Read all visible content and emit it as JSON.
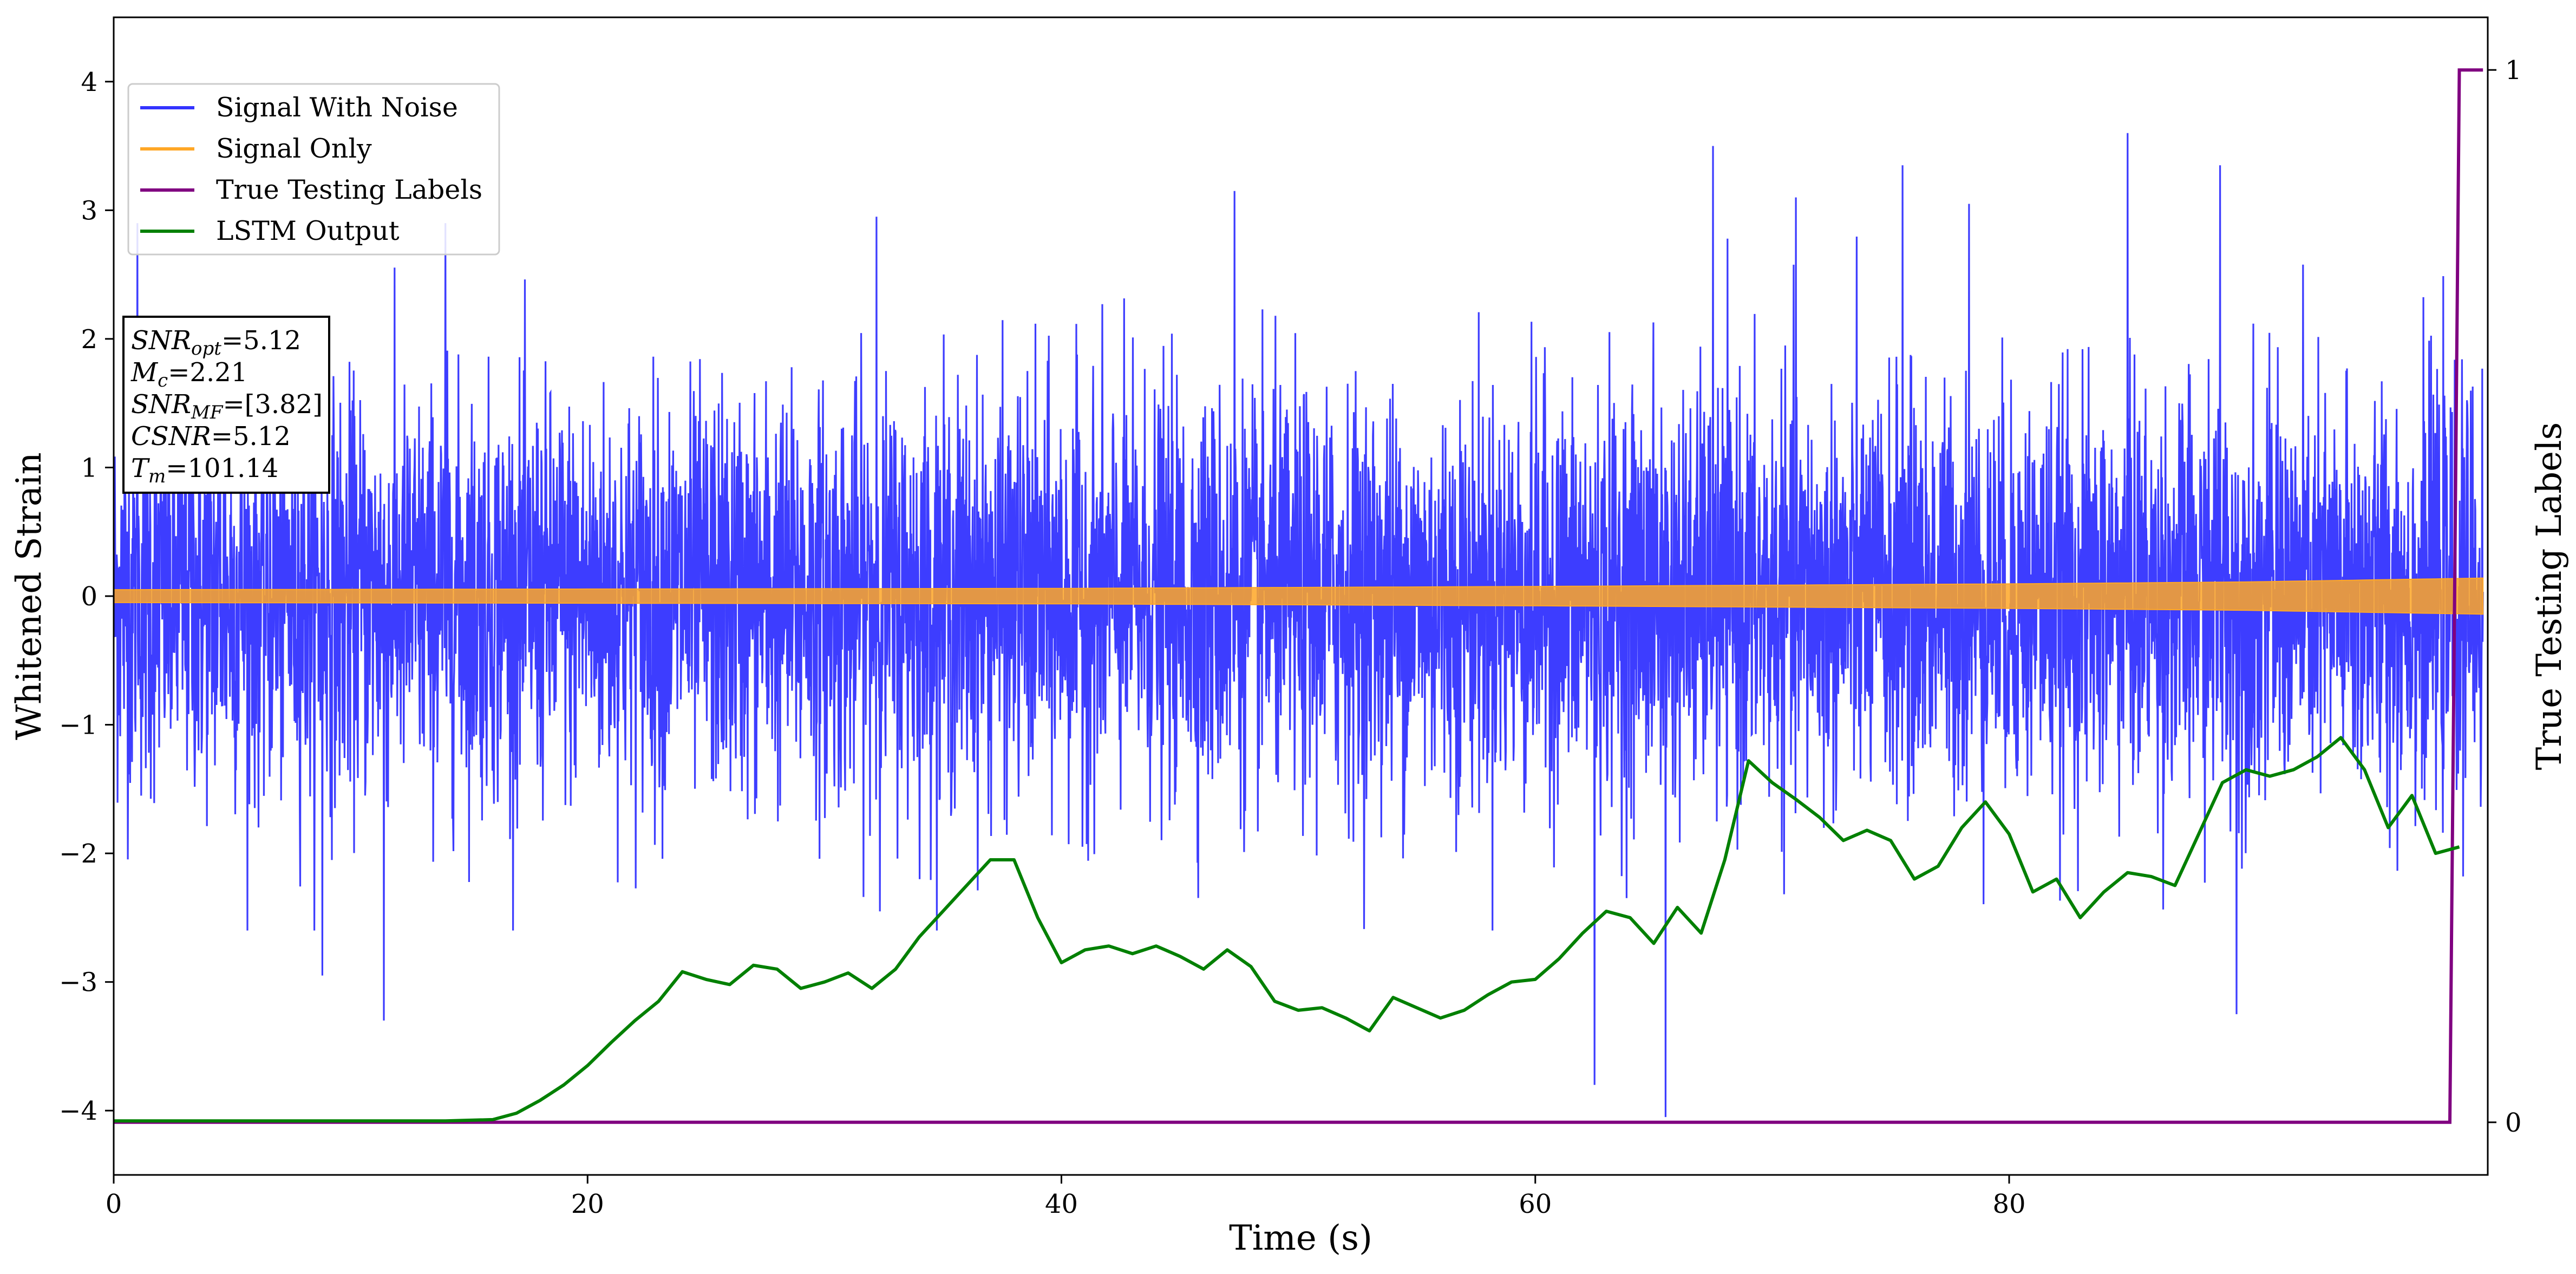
{
  "chart_data": {
    "type": "line",
    "xlabel": "Time (s)",
    "ylabel": "Whitened Strain",
    "y2label": "True Testing Labels",
    "xlim": [
      0,
      100.2
    ],
    "ylim": [
      -4.5,
      4.5
    ],
    "y2lim": [
      -0.05,
      1.05
    ],
    "x_ticks": [
      0,
      20,
      40,
      60,
      80
    ],
    "x_tick_labels": [
      "0",
      "20",
      "40",
      "60",
      "80"
    ],
    "y_ticks": [
      -4,
      -3,
      -2,
      -1,
      0,
      1,
      2,
      3,
      4
    ],
    "y_tick_labels": [
      "−4",
      "−3",
      "−2",
      "−1",
      "0",
      "1",
      "2",
      "3",
      "4"
    ],
    "y2_ticks": [
      0,
      1
    ],
    "y2_tick_labels": [
      "0",
      "1"
    ],
    "grid": false,
    "legend_position": "upper-left",
    "series": [
      {
        "name": "Signal With Noise",
        "color": "#3333ff",
        "axis": "left",
        "style": "dense noise, roughly between -2.5 and 3.0, spikes up to 3.6 and down to -4.0",
        "spikes": [
          {
            "x": 1.0,
            "y": 2.9
          },
          {
            "x": 2.8,
            "y": 2.0
          },
          {
            "x": 8.8,
            "y": -2.95
          },
          {
            "x": 11.4,
            "y": 2.85
          },
          {
            "x": 11.4,
            "y": -3.3
          },
          {
            "x": 14.0,
            "y": 2.9
          },
          {
            "x": 32.2,
            "y": 2.95
          },
          {
            "x": 47.3,
            "y": 3.15
          },
          {
            "x": 62.5,
            "y": -3.8
          },
          {
            "x": 65.5,
            "y": -4.05
          },
          {
            "x": 67.5,
            "y": 3.5
          },
          {
            "x": 71.0,
            "y": 3.1
          },
          {
            "x": 75.5,
            "y": 3.35
          },
          {
            "x": 78.3,
            "y": 3.05
          },
          {
            "x": 85.0,
            "y": 3.6
          },
          {
            "x": 88.9,
            "y": 3.35
          },
          {
            "x": 89.6,
            "y": -3.25
          }
        ]
      },
      {
        "name": "Signal Only",
        "color": "#ffa726",
        "axis": "left",
        "style": "chirp envelope",
        "envelope": [
          [
            0,
            0.05
          ],
          [
            20,
            0.055
          ],
          [
            40,
            0.06
          ],
          [
            60,
            0.075
          ],
          [
            80,
            0.095
          ],
          [
            90,
            0.11
          ],
          [
            100,
            0.14
          ]
        ]
      },
      {
        "name": "True Testing Labels",
        "color": "#800080",
        "axis": "right",
        "x": [
          0,
          98.6,
          99.0,
          100
        ],
        "values": [
          0,
          0,
          1,
          1
        ]
      },
      {
        "name": "LSTM Output",
        "color": "#008000",
        "axis": "left",
        "x": [
          0,
          14,
          16,
          17,
          18,
          19,
          20,
          21,
          22,
          23,
          24,
          25,
          26,
          27,
          28,
          29,
          30,
          31,
          32,
          33,
          34,
          35,
          36,
          37,
          38,
          39,
          40,
          41,
          42,
          43,
          44,
          45,
          46,
          47,
          48,
          49,
          50,
          51,
          52,
          53,
          54,
          55,
          56,
          57,
          58,
          59,
          60,
          61,
          62,
          63,
          64,
          65,
          66,
          67,
          68,
          69,
          70,
          71,
          72,
          73,
          74,
          75,
          76,
          77,
          78,
          79,
          80,
          81,
          82,
          83,
          84,
          85,
          86,
          87,
          88,
          89,
          90,
          91,
          92,
          93,
          94,
          95,
          96,
          97,
          98,
          99
        ],
        "values": [
          -4.08,
          -4.08,
          -4.07,
          -4.02,
          -3.92,
          -3.8,
          -3.65,
          -3.47,
          -3.3,
          -3.15,
          -2.92,
          -2.98,
          -3.02,
          -2.87,
          -2.9,
          -3.05,
          -3.0,
          -2.93,
          -3.05,
          -2.9,
          -2.65,
          -2.45,
          -2.25,
          -2.05,
          -2.05,
          -2.5,
          -2.85,
          -2.75,
          -2.72,
          -2.78,
          -2.72,
          -2.8,
          -2.9,
          -2.75,
          -2.88,
          -3.15,
          -3.22,
          -3.2,
          -3.28,
          -3.38,
          -3.12,
          -3.2,
          -3.28,
          -3.22,
          -3.1,
          -3.0,
          -2.98,
          -2.82,
          -2.62,
          -2.45,
          -2.5,
          -2.7,
          -2.42,
          -2.62,
          -2.05,
          -1.28,
          -1.45,
          -1.58,
          -1.72,
          -1.9,
          -1.82,
          -1.9,
          -2.2,
          -2.1,
          -1.8,
          -1.6,
          -1.85,
          -2.3,
          -2.2,
          -2.5,
          -2.3,
          -2.15,
          -2.18,
          -2.25,
          -1.85,
          -1.45,
          -1.35,
          -1.4,
          -1.35,
          -1.25,
          -1.1,
          -1.35,
          -1.8,
          -1.55,
          -2.0,
          -1.95
        ]
      }
    ],
    "annotation": {
      "lines": [
        {
          "symbol": "SNR",
          "subscript": "opt",
          "value": "=5.12"
        },
        {
          "symbol": "M",
          "subscript": "c",
          "value": "=2.21"
        },
        {
          "symbol": "SNR",
          "subscript": "MF",
          "value": "=[3.82]"
        },
        {
          "symbol": "CSNR",
          "subscript": "",
          "value": "=5.12"
        },
        {
          "symbol": "T",
          "subscript": "m",
          "value": "=101.14"
        }
      ]
    }
  }
}
